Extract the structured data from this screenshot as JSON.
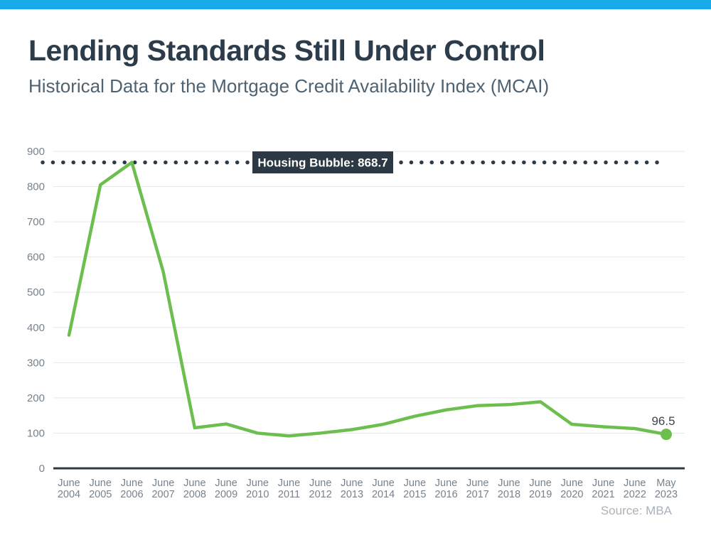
{
  "accent_color": "#18a9e8",
  "header": {
    "title": "Lending Standards Still Under Control",
    "subtitle": "Historical Data for the Mortgage Credit Availability Index (MCAI)"
  },
  "chart_data": {
    "type": "line",
    "title": "Historical Data for the Mortgage Credit Availability Index (MCAI)",
    "categories": [
      "June 2004",
      "June 2005",
      "June 2006",
      "June 2007",
      "June 2008",
      "June 2009",
      "June 2010",
      "June 2011",
      "June 2012",
      "June 2013",
      "June 2014",
      "June 2015",
      "June 2016",
      "June 2017",
      "June 2018",
      "June 2019",
      "June 2020",
      "June 2021",
      "June 2022",
      "May 2023"
    ],
    "values": [
      378,
      805,
      868.7,
      558,
      115,
      126,
      100,
      92,
      100,
      110,
      125,
      148,
      166,
      178,
      181,
      189,
      125,
      118,
      113,
      96.5
    ],
    "ylim": [
      0,
      900
    ],
    "ytick_step": 100,
    "grid": true,
    "legend": "none",
    "line_color": "#6cbf4e",
    "reference_line": {
      "value": 868.7,
      "label": "Housing Bubble: 868.7",
      "style": "dotted",
      "color": "#2e3b47"
    },
    "end_point": {
      "category": "May 2023",
      "value": 96.5,
      "label": "96.5"
    }
  },
  "footer": {
    "source": "Source: MBA"
  }
}
